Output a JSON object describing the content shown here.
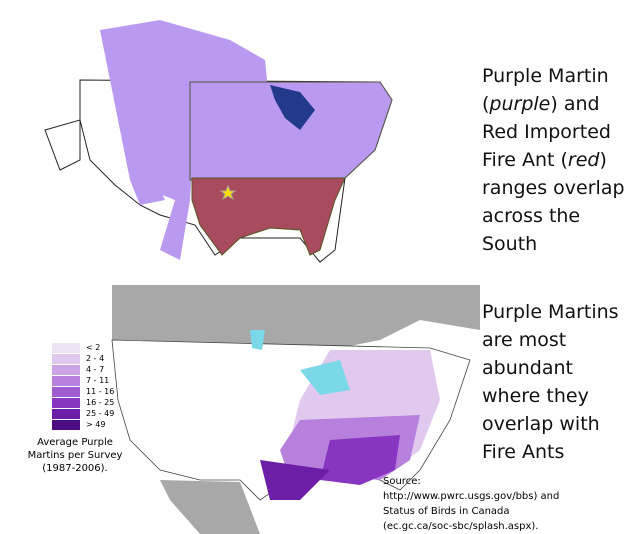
{
  "caption_top": {
    "parts": [
      "Purple Martin (",
      "purple",
      ") and Red Imported Fire Ant (",
      "red",
      ") ranges overlap across the South"
    ]
  },
  "caption_bottom": {
    "text": "Purple Martins are most abundant where they overlap with Fire Ants"
  },
  "legend": {
    "items": [
      {
        "label": "< 2",
        "color": "#efe4f6"
      },
      {
        "label": "2 - 4",
        "color": "#e0c8ef"
      },
      {
        "label": "4 - 7",
        "color": "#cca4e6"
      },
      {
        "label": "7 - 11",
        "color": "#b680dc"
      },
      {
        "label": "11 - 16",
        "color": "#9f5bd0"
      },
      {
        "label": "16 - 25",
        "color": "#8836c2"
      },
      {
        "label": "25 - 49",
        "color": "#6c1ea6"
      },
      {
        "label": "> 49",
        "color": "#4c0c82"
      }
    ],
    "title": "Average Purple Martins per Survey (1987-2006)."
  },
  "source": {
    "text": "Source: http://www.pwrc.usgs.gov/bbs) and Status of Birds in Canada (ec.gc.ca/soc-sbc/splash.aspx)."
  }
}
